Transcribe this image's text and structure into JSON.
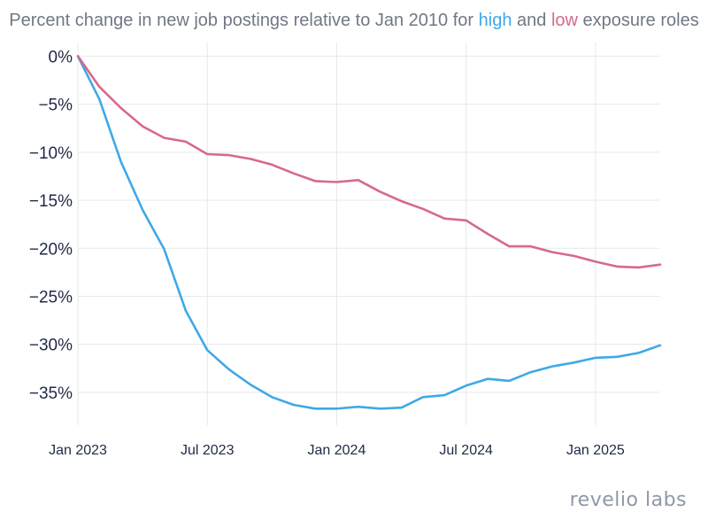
{
  "title": {
    "prefix": "Percent change in new job postings relative to Jan 2010 for ",
    "high": "high",
    "middle": " and ",
    "low": "low",
    "suffix": " exposure roles"
  },
  "logo": {
    "part1": "revel",
    "dot": "i",
    "part2": "o labs"
  },
  "colors": {
    "high": "#3fa9e6",
    "low": "#d6698e",
    "grid": "#e6e8ec",
    "axis_text": "#1f2a44",
    "title": "#707884"
  },
  "chart_data": {
    "type": "line",
    "x_unit": "month",
    "x": [
      "2023-01",
      "2023-02",
      "2023-03",
      "2023-04",
      "2023-05",
      "2023-06",
      "2023-07",
      "2023-08",
      "2023-09",
      "2023-10",
      "2023-11",
      "2023-12",
      "2024-01",
      "2024-02",
      "2024-03",
      "2024-04",
      "2024-05",
      "2024-06",
      "2024-07",
      "2024-08",
      "2024-09",
      "2024-10",
      "2024-11",
      "2024-12",
      "2025-01",
      "2025-02",
      "2025-03",
      "2025-04"
    ],
    "x_ticks": [
      {
        "x": "2023-01",
        "label": "Jan 2023"
      },
      {
        "x": "2023-07",
        "label": "Jul 2023"
      },
      {
        "x": "2024-01",
        "label": "Jan 2024"
      },
      {
        "x": "2024-07",
        "label": "Jul 2024"
      },
      {
        "x": "2025-01",
        "label": "Jan 2025"
      }
    ],
    "y_ticks": [
      0,
      -5,
      -10,
      -15,
      -20,
      -25,
      -30,
      -35
    ],
    "y_tick_labels": [
      "0%",
      "−5%",
      "−10%",
      "−15%",
      "−20%",
      "−25%",
      "−30%",
      "−35%"
    ],
    "ylim": [
      -37.5,
      0.5
    ],
    "grid": true,
    "legend": "none (colored words in title)",
    "series": [
      {
        "name": "high",
        "color": "#3fa9e6",
        "values": [
          0,
          -4.5,
          -11,
          -16,
          -20.1,
          -26.5,
          -30.6,
          -32.6,
          -34.2,
          -35.5,
          -36.3,
          -36.7,
          -36.7,
          -36.5,
          -36.7,
          -36.6,
          -35.5,
          -35.3,
          -34.3,
          -33.6,
          -33.8,
          -32.9,
          -32.3,
          -31.9,
          -31.4,
          -31.3,
          -30.9,
          -30.1
        ]
      },
      {
        "name": "low",
        "color": "#d6698e",
        "values": [
          0,
          -3.2,
          -5.4,
          -7.3,
          -8.5,
          -8.9,
          -10.2,
          -10.3,
          -10.7,
          -11.3,
          -12.2,
          -13.0,
          -13.1,
          -12.9,
          -14.1,
          -15.1,
          -15.9,
          -16.9,
          -17.1,
          -18.5,
          -19.8,
          -19.8,
          -20.4,
          -20.8,
          -21.4,
          -21.9,
          -22.0,
          -21.7
        ]
      }
    ]
  }
}
